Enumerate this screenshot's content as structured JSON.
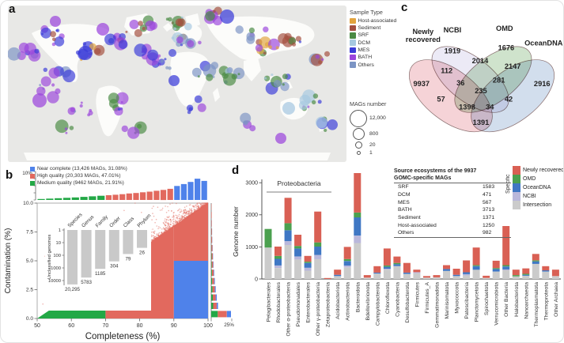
{
  "panel_labels": {
    "a": "a",
    "b": "b",
    "c": "c",
    "d": "d"
  },
  "chart_data": [
    {
      "type": "scatter",
      "name": "global-sampling-map",
      "panel": "a",
      "legend_title": "Sample Type",
      "sample_types": [
        {
          "label": "Host-associated",
          "color": "#E2A33D"
        },
        {
          "label": "Sediment",
          "color": "#A34E3E"
        },
        {
          "label": "SRF",
          "color": "#4A8A44"
        },
        {
          "label": "DCM",
          "color": "#A6C8E0"
        },
        {
          "label": "MES",
          "color": "#3A3BD8"
        },
        {
          "label": "BATH",
          "color": "#9B45DC"
        },
        {
          "label": "Others",
          "color": "#7C94C4"
        }
      ],
      "size_legend": {
        "title": "MAGs number",
        "items": [
          {
            "label": "12,000",
            "r": 10
          },
          {
            "label": "800",
            "r": 6.5
          },
          {
            "label": "20",
            "r": 3.5
          },
          {
            "label": "1",
            "r": 1.5
          }
        ]
      },
      "ocean_color": "#E8E8E6",
      "land_color": "#FCFCFA",
      "clusters": [
        {
          "x": 58,
          "y": 36,
          "n": 10,
          "s": 16,
          "p": [
            "BATH",
            "MES",
            "Sediment",
            "SRF"
          ]
        },
        {
          "x": 22,
          "y": 58,
          "n": 8,
          "s": 14,
          "p": [
            "BATH",
            "MES",
            "Others"
          ]
        },
        {
          "x": 100,
          "y": 56,
          "n": 13,
          "s": 16,
          "p": [
            "BATH",
            "MES",
            "Host-associated",
            "DCM",
            "Sediment"
          ]
        },
        {
          "x": 140,
          "y": 42,
          "n": 9,
          "s": 14,
          "p": [
            "Sediment",
            "BATH",
            "Host-associated",
            "MES"
          ]
        },
        {
          "x": 172,
          "y": 28,
          "n": 8,
          "s": 13,
          "p": [
            "BATH",
            "Sediment",
            "SRF",
            "MES"
          ]
        },
        {
          "x": 214,
          "y": 20,
          "n": 10,
          "s": 14,
          "p": [
            "SRF",
            "SRF",
            "Sediment",
            "DCM"
          ]
        },
        {
          "x": 222,
          "y": 50,
          "n": 13,
          "s": 17,
          "p": [
            "MES",
            "DCM",
            "Host-associated",
            "BATH",
            "Others"
          ]
        },
        {
          "x": 196,
          "y": 78,
          "n": 8,
          "s": 13,
          "p": [
            "MES",
            "BATH",
            "DCM",
            "Others"
          ]
        },
        {
          "x": 136,
          "y": 124,
          "n": 8,
          "s": 14,
          "p": [
            "BATH",
            "SRF",
            "MES"
          ]
        },
        {
          "x": 92,
          "y": 134,
          "n": 8,
          "s": 15,
          "p": [
            "BATH",
            "BATH",
            "Others"
          ]
        },
        {
          "x": 52,
          "y": 108,
          "n": 6,
          "s": 16,
          "p": [
            "BATH",
            "Others"
          ]
        },
        {
          "x": 254,
          "y": 84,
          "n": 8,
          "s": 14,
          "p": [
            "Others",
            "MES",
            "SRF"
          ]
        },
        {
          "x": 286,
          "y": 90,
          "n": 8,
          "s": 14,
          "p": [
            "SRF",
            "Others",
            "DCM"
          ]
        },
        {
          "x": 328,
          "y": 54,
          "n": 11,
          "s": 15,
          "p": [
            "SRF",
            "Sediment",
            "BATH",
            "Host-associated"
          ]
        },
        {
          "x": 360,
          "y": 44,
          "n": 8,
          "s": 12,
          "p": [
            "SRF",
            "Sediment",
            "MES"
          ]
        },
        {
          "x": 344,
          "y": 94,
          "n": 10,
          "s": 15,
          "p": [
            "DCM",
            "MES",
            "SRF",
            "Others"
          ]
        },
        {
          "x": 382,
          "y": 122,
          "n": 10,
          "s": 15,
          "p": [
            "DCM",
            "SRF",
            "MES",
            "BATH"
          ]
        },
        {
          "x": 258,
          "y": 14,
          "n": 8,
          "s": 16,
          "p": [
            "SRF",
            "Sediment",
            "BATH"
          ]
        },
        {
          "x": 158,
          "y": 158,
          "n": 5,
          "s": 12,
          "p": [
            "BATH",
            "SRF"
          ]
        },
        {
          "x": 308,
          "y": 148,
          "n": 4,
          "s": 12,
          "p": [
            "BATH",
            "Others"
          ]
        },
        {
          "x": 396,
          "y": 64,
          "n": 6,
          "s": 12,
          "p": [
            "BATH",
            "Others",
            "Sediment"
          ]
        },
        {
          "x": 238,
          "y": 128,
          "n": 5,
          "s": 12,
          "p": [
            "MES",
            "BATH"
          ]
        },
        {
          "x": 74,
          "y": 158,
          "n": 4,
          "s": 10,
          "p": [
            "BATH",
            "SRF"
          ]
        },
        {
          "x": 402,
          "y": 152,
          "n": 5,
          "s": 10,
          "p": [
            "SRF",
            "DCM",
            "MES"
          ]
        },
        {
          "x": 62,
          "y": 86,
          "n": 6,
          "s": 18,
          "p": [
            "BATH",
            "MES",
            "Others"
          ]
        },
        {
          "x": 180,
          "y": 60,
          "n": 8,
          "s": 14,
          "p": [
            "MES",
            "BATH",
            "Host-associated"
          ]
        },
        {
          "x": 310,
          "y": 30,
          "n": 6,
          "s": 14,
          "p": [
            "BATH",
            "SRF",
            "Others"
          ]
        }
      ],
      "extras": [
        {
          "x": 277,
          "y": 14,
          "r": 9,
          "c": "MES"
        },
        {
          "x": 60,
          "y": 20,
          "r": 7,
          "c": "BATH"
        },
        {
          "x": 120,
          "y": 30,
          "r": 8,
          "c": "BATH"
        },
        {
          "x": 355,
          "y": 130,
          "r": 8,
          "c": "DCM"
        },
        {
          "x": 40,
          "y": 120,
          "r": 9,
          "c": "BATH"
        },
        {
          "x": 210,
          "y": 95,
          "r": 7,
          "c": "MES"
        },
        {
          "x": 345,
          "y": 168,
          "r": 7,
          "c": "BATH"
        },
        {
          "x": 98,
          "y": 60,
          "r": 9,
          "c": "MES"
        }
      ]
    },
    {
      "type": "scatter",
      "name": "mag-quality",
      "panel": "b",
      "legend": [
        {
          "label": "Near complete (13,426 MAGs, 31.08%)",
          "color": "#4F82EA"
        },
        {
          "label": "High quality (20,303 MAGs, 47.01%)",
          "color": "#E2695E"
        },
        {
          "label": "Medium quality (9462 MAGs, 21.91%)",
          "color": "#23A846"
        }
      ],
      "xlabel": "Completeness (%)",
      "ylabel": "Contamination (%)",
      "x_ticks": [
        "50",
        "60",
        "70",
        "80",
        "90",
        "100"
      ],
      "y_ticks": [
        "0.0",
        "2.5",
        "5.0",
        "7.5",
        "10.0"
      ],
      "xlim": [
        50,
        100
      ],
      "ylim": [
        0,
        10
      ],
      "colors": {
        "g": "#23A846",
        "r": "#E2695E",
        "b": "#4F82EA"
      },
      "top_hist": {
        "axis_label": "10%",
        "bars": [
          [
            0.35,
            "g"
          ],
          [
            0.5,
            "g"
          ],
          [
            0.65,
            "g"
          ],
          [
            0.8,
            "g"
          ],
          [
            0.95,
            "g"
          ],
          [
            1.15,
            "g"
          ],
          [
            1.35,
            "g"
          ],
          [
            1.55,
            "g"
          ],
          [
            1.75,
            "r"
          ],
          [
            1.95,
            "r"
          ],
          [
            2.15,
            "r"
          ],
          [
            2.4,
            "r"
          ],
          [
            2.6,
            "r"
          ],
          [
            2.85,
            "r"
          ],
          [
            3.1,
            "r"
          ],
          [
            3.4,
            "r"
          ],
          [
            3.75,
            "r"
          ],
          [
            4.15,
            "r"
          ],
          [
            5.2,
            "b"
          ],
          [
            5.9,
            "b"
          ],
          [
            6.7,
            "b"
          ],
          [
            7.9,
            "b"
          ],
          [
            7.1,
            "b"
          ]
        ]
      },
      "right_hist": {
        "axis_label": "25%",
        "bars": [
          [
            0,
            0.4,
            0
          ],
          [
            0,
            0.55,
            0
          ],
          [
            0.1,
            0.6,
            0.1
          ],
          [
            0.15,
            0.75,
            0.15
          ],
          [
            0.2,
            0.95,
            0.2
          ],
          [
            0.3,
            1.15,
            0.3
          ],
          [
            0.45,
            1.4,
            0.4
          ],
          [
            0.65,
            1.65,
            0.5
          ],
          [
            0.9,
            2.0,
            0.65
          ],
          [
            1.2,
            2.4,
            0.85
          ],
          [
            1.5,
            2.9,
            1.1
          ],
          [
            1.9,
            3.5,
            1.35
          ],
          [
            2.4,
            4.2,
            1.6
          ],
          [
            8.0,
            11.0,
            5.0
          ]
        ]
      },
      "regions": {
        "medium_poly": [
          [
            50,
            0
          ],
          [
            70,
            0
          ],
          [
            70,
            4
          ]
        ],
        "high_poly": [
          [
            70,
            0
          ],
          [
            90,
            0
          ],
          [
            90,
            8
          ],
          [
            70,
            4
          ]
        ],
        "near_poly": [
          [
            90,
            0
          ],
          [
            100,
            0
          ],
          [
            100,
            5
          ],
          [
            90,
            5
          ]
        ],
        "high_upper_poly": [
          [
            90,
            5
          ],
          [
            90,
            8
          ],
          [
            100,
            10
          ],
          [
            100,
            5
          ]
        ]
      },
      "cloud": {
        "n": 900,
        "color": "#E2695E"
      },
      "inset": {
        "ylabel": "Unclassified genomes",
        "categories": [
          "Species",
          "Genus",
          "Family",
          "Order",
          "Class",
          "Phylum"
        ],
        "values": [
          20295,
          5783,
          1185,
          304,
          79,
          26
        ],
        "value_labels": [
          "20,295",
          "5783",
          "1185",
          "304",
          "79",
          "26"
        ],
        "y_ticks": [
          "1",
          "10",
          "100",
          "1000",
          "10000"
        ],
        "bar_color": "#C9C9C9"
      }
    },
    {
      "type": "venn",
      "name": "mag-overlap",
      "panel": "c",
      "sets": [
        {
          "name": "Newly recovered",
          "label_lines": [
            "Newly",
            "recovered"
          ],
          "color": "#ECAEB6"
        },
        {
          "name": "NCBI",
          "label_lines": [
            "NCBI"
          ],
          "color": "#DDD9EE"
        },
        {
          "name": "OMD",
          "label_lines": [
            "OMD"
          ],
          "color": "#A8CCA2"
        },
        {
          "name": "OceanDNA",
          "label_lines": [
            "OceanDNA"
          ],
          "color": "#ADC3DF"
        }
      ],
      "regions": {
        "A": "9937",
        "B": "1919",
        "C": "1676",
        "D": "2916",
        "AB": "112",
        "BC": "2014",
        "CD": "2147",
        "ABC": "36",
        "BCD": "281",
        "ABCD": "235",
        "AC": "57",
        "BD": "42",
        "ACD": "1398",
        "ABD": "34",
        "AD": "1391"
      }
    },
    {
      "type": "bar",
      "name": "taxonomy-genomes",
      "panel": "d",
      "ylabel": "Genome number",
      "y_ticks": [
        "0",
        "1000",
        "2000",
        "3000"
      ],
      "ylim": [
        0,
        3400
      ],
      "group_label": "Proteobacteria",
      "group_span": [
        0,
        6
      ],
      "legend": {
        "rotated_label": "Specific",
        "items": [
          {
            "label": "Newly recovered",
            "color": "#D96054"
          },
          {
            "label": "OMD",
            "color": "#4BA04F"
          },
          {
            "label": "OceanDNA",
            "color": "#3F77C4"
          },
          {
            "label": "NCBI",
            "color": "#B9B7DB"
          },
          {
            "label": "Intersection",
            "color": "#CBCBCB"
          }
        ]
      },
      "table": {
        "title_lines": [
          "Source ecosystems of the 9937",
          "GOMC-specific MAGs"
        ],
        "rows": [
          [
            "SRF",
            "1583"
          ],
          [
            "DCM",
            "471"
          ],
          [
            "MES",
            "567"
          ],
          [
            "BATH",
            "3713"
          ],
          [
            "Sediment",
            "1371"
          ],
          [
            "Host-associated",
            "1250"
          ],
          [
            "Others",
            "982"
          ]
        ]
      },
      "categories": [
        "Pelagibacterales",
        "Rhodobacterales",
        "Other α-proteobacteria",
        "Pseudomonadales",
        "Enterobacterales",
        "Other γ-proteobacteria",
        "Zetaproteobacteria",
        "Acidobacteriota",
        "Actinobacteriota",
        "Bacteroidota",
        "Bdellovibrionota",
        "Campylobacterota",
        "Chloroflexota",
        "Cyanobacteria",
        "Desulfobacterota",
        "Firmicutes",
        "Firmicutes_A",
        "Gemmatimonadota",
        "Marinisomatota",
        "Myxococcota",
        "Patescibacteria",
        "Planctomycetota",
        "Spirochaetota",
        "Verrucomicrobiota",
        "Other Bacteria",
        "Halobacteriota",
        "Nanoarchaeota",
        "Thermoplasmatota",
        "Thermoproteota",
        "Other Archaea"
      ],
      "series": [
        {
          "name": "Intersection",
          "color": "#CBCBCB",
          "values": [
            980,
            340,
            1060,
            610,
            260,
            620,
            0,
            90,
            360,
            1120,
            40,
            170,
            290,
            400,
            160,
            180,
            40,
            50,
            250,
            90,
            110,
            290,
            30,
            230,
            270,
            80,
            100,
            470,
            230,
            90
          ]
        },
        {
          "name": "NCBI",
          "color": "#B9B7DB",
          "values": [
            0,
            80,
            120,
            90,
            90,
            130,
            0,
            0,
            60,
            230,
            0,
            0,
            30,
            0,
            0,
            30,
            0,
            0,
            0,
            0,
            40,
            0,
            0,
            0,
            30,
            0,
            0,
            0,
            0,
            0
          ]
        },
        {
          "name": "OceanDNA",
          "color": "#3F77C4",
          "values": [
            0,
            210,
            340,
            250,
            150,
            260,
            0,
            40,
            140,
            570,
            0,
            30,
            60,
            60,
            40,
            0,
            0,
            0,
            60,
            40,
            60,
            110,
            0,
            80,
            90,
            0,
            30,
            80,
            40,
            0
          ]
        },
        {
          "name": "OMD",
          "color": "#4BA04F",
          "values": [
            580,
            90,
            220,
            80,
            40,
            130,
            0,
            0,
            60,
            150,
            0,
            0,
            40,
            40,
            0,
            0,
            0,
            0,
            0,
            0,
            0,
            30,
            0,
            30,
            40,
            40,
            30,
            30,
            0,
            0
          ]
        },
        {
          "name": "Newly recovered",
          "color": "#D96054",
          "values": [
            0,
            290,
            790,
            350,
            180,
            960,
            30,
            160,
            380,
            1230,
            80,
            200,
            530,
            200,
            300,
            80,
            50,
            70,
            120,
            190,
            370,
            550,
            70,
            230,
            1220,
            170,
            170,
            200,
            130,
            200
          ]
        }
      ]
    }
  ]
}
